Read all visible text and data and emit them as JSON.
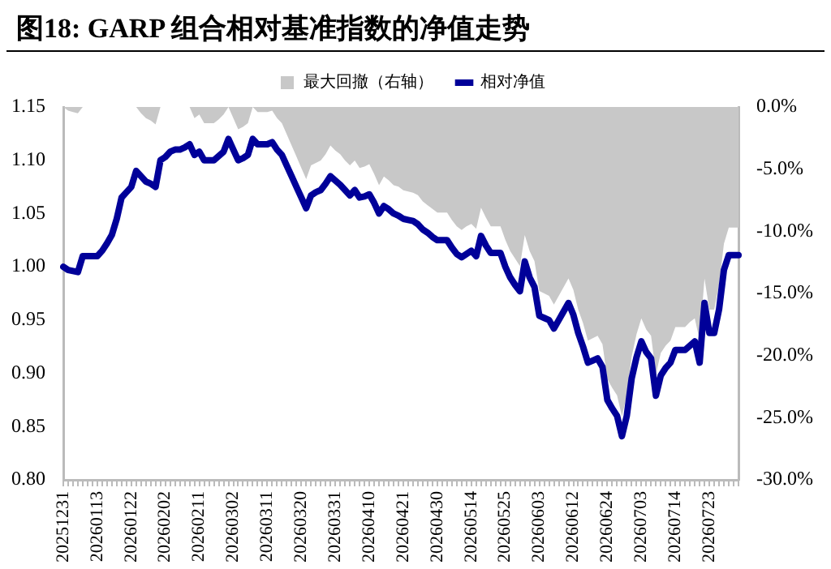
{
  "chart_data": {
    "type": "line",
    "title": "图18:  GARP 组合相对基准指数的净值走势",
    "categories": [
      "20251231",
      null,
      null,
      null,
      null,
      null,
      null,
      "20260113",
      null,
      null,
      null,
      null,
      null,
      null,
      "20260122",
      null,
      null,
      null,
      null,
      null,
      null,
      "20260202",
      null,
      null,
      null,
      null,
      null,
      null,
      "20260211",
      null,
      null,
      null,
      null,
      null,
      null,
      "20260302",
      null,
      null,
      null,
      null,
      null,
      null,
      "20260311",
      null,
      null,
      null,
      null,
      null,
      null,
      "20260320",
      null,
      null,
      null,
      null,
      null,
      null,
      "20260331",
      null,
      null,
      null,
      null,
      null,
      null,
      "20260410",
      null,
      null,
      null,
      null,
      null,
      null,
      "20260421",
      null,
      null,
      null,
      null,
      null,
      null,
      "20260430",
      null,
      null,
      null,
      null,
      null,
      null,
      "20260514",
      null,
      null,
      null,
      null,
      null,
      null,
      "20260525",
      null,
      null,
      null,
      null,
      null,
      null,
      "20260603",
      null,
      null,
      null,
      null,
      null,
      null,
      "20260612",
      null,
      null,
      null,
      null,
      null,
      null,
      "20260624",
      null,
      null,
      null,
      null,
      null,
      null,
      "20260703",
      null,
      null,
      null,
      null,
      null,
      null,
      "20260714",
      null,
      null,
      null,
      null,
      null,
      null,
      "20260723",
      null,
      null,
      null,
      null,
      null,
      null
    ],
    "series": [
      {
        "name": "最大回撤（右轴）",
        "type": "area",
        "axis": "y2",
        "color": "#c8c8c8",
        "values": [
          0,
          -0.3,
          -0.4,
          -0.5,
          0,
          0,
          0,
          0,
          0,
          0,
          0,
          0,
          0,
          0,
          0,
          0,
          -0.5,
          -0.9,
          -1.1,
          -1.4,
          0,
          0,
          0,
          0,
          0,
          0,
          0,
          -0.9,
          -0.6,
          -1.3,
          -1.3,
          -1.3,
          -1.0,
          -0.6,
          0,
          -0.9,
          -1.8,
          -1.6,
          -1.3,
          0,
          -0.4,
          -0.4,
          -0.4,
          -0.3,
          -0.9,
          -1.3,
          -2.2,
          -3.1,
          -4.0,
          -4.9,
          -5.8,
          -4.7,
          -4.5,
          -4.3,
          -3.8,
          -3.1,
          -3.5,
          -3.8,
          -4.3,
          -4.7,
          -4.3,
          -4.9,
          -4.8,
          -4.6,
          -5.4,
          -6.3,
          -5.6,
          -5.9,
          -6.3,
          -6.4,
          -6.7,
          -6.8,
          -6.9,
          -7.1,
          -7.6,
          -7.9,
          -8.2,
          -8.5,
          -8.5,
          -8.5,
          -9.1,
          -9.6,
          -9.9,
          -9.6,
          -9.4,
          -9.8,
          -8.1,
          -8.9,
          -9.6,
          -9.6,
          -9.6,
          -10.7,
          -11.6,
          -12.2,
          -12.8,
          -10.3,
          -11.6,
          -12.4,
          -14.8,
          -15.0,
          -15.2,
          -15.9,
          -15.2,
          -14.5,
          -13.8,
          -14.7,
          -16.3,
          -17.4,
          -18.8,
          -18.6,
          -18.4,
          -19.1,
          -21.9,
          -22.6,
          -23.2,
          -24.9,
          -23.2,
          -20.1,
          -18.3,
          -17.0,
          -17.9,
          -18.4,
          -21.5,
          -19.8,
          -19.2,
          -18.8,
          -17.7,
          -17.7,
          -17.7,
          -17.3,
          -17.0,
          -18.8,
          -13.8,
          -16.3,
          -16.3,
          -14.3,
          -11.0,
          -9.7,
          -9.7,
          -9.7
        ]
      },
      {
        "name": "相对净值",
        "type": "line",
        "color": "#000099",
        "values": [
          1.0,
          0.997,
          0.996,
          0.995,
          1.01,
          1.01,
          1.01,
          1.01,
          1.015,
          1.022,
          1.03,
          1.045,
          1.065,
          1.07,
          1.075,
          1.09,
          1.085,
          1.08,
          1.078,
          1.075,
          1.1,
          1.103,
          1.108,
          1.11,
          1.11,
          1.112,
          1.115,
          1.105,
          1.108,
          1.1,
          1.1,
          1.1,
          1.104,
          1.108,
          1.12,
          1.11,
          1.1,
          1.102,
          1.105,
          1.12,
          1.115,
          1.115,
          1.115,
          1.117,
          1.11,
          1.105,
          1.095,
          1.085,
          1.075,
          1.065,
          1.055,
          1.067,
          1.07,
          1.072,
          1.078,
          1.085,
          1.081,
          1.077,
          1.072,
          1.067,
          1.072,
          1.065,
          1.066,
          1.068,
          1.06,
          1.05,
          1.057,
          1.054,
          1.05,
          1.048,
          1.045,
          1.044,
          1.043,
          1.04,
          1.035,
          1.032,
          1.028,
          1.025,
          1.025,
          1.025,
          1.018,
          1.012,
          1.009,
          1.012,
          1.015,
          1.01,
          1.029,
          1.02,
          1.013,
          1.013,
          1.013,
          1.0,
          0.99,
          0.983,
          0.977,
          1.005,
          0.99,
          0.981,
          0.954,
          0.952,
          0.95,
          0.942,
          0.95,
          0.958,
          0.966,
          0.955,
          0.938,
          0.925,
          0.91,
          0.912,
          0.914,
          0.906,
          0.875,
          0.867,
          0.86,
          0.841,
          0.86,
          0.895,
          0.915,
          0.93,
          0.92,
          0.914,
          0.879,
          0.898,
          0.905,
          0.91,
          0.922,
          0.922,
          0.922,
          0.926,
          0.93,
          0.91,
          0.966,
          0.938,
          0.938,
          0.96,
          0.997,
          1.011,
          1.011,
          1.011
        ]
      }
    ],
    "ylim": [
      0.8,
      1.15
    ],
    "yticks": [
      {
        "value": 0.8,
        "label": "0.80"
      },
      {
        "value": 0.85,
        "label": "0.85"
      },
      {
        "value": 0.9,
        "label": "0.90"
      },
      {
        "value": 0.95,
        "label": "0.95"
      },
      {
        "value": 1,
        "label": "1.00"
      },
      {
        "value": 1.05,
        "label": "1.05"
      },
      {
        "value": 1.1,
        "label": "1.10"
      },
      {
        "value": 1.15,
        "label": "1.15"
      }
    ],
    "y2lim": [
      -30,
      0
    ],
    "y2ticks": [
      {
        "value": -30,
        "label": "-30.0%"
      },
      {
        "value": -25,
        "label": "-25.0%"
      },
      {
        "value": -20,
        "label": "-20.0%"
      },
      {
        "value": -15,
        "label": "-15.0%"
      },
      {
        "value": -10,
        "label": "-10.0%"
      },
      {
        "value": -5,
        "label": "-5.0%"
      },
      {
        "value": 0,
        "label": "0.0%"
      }
    ],
    "grid": false,
    "legend": "top",
    "marker": "none",
    "line_style": "solid"
  }
}
